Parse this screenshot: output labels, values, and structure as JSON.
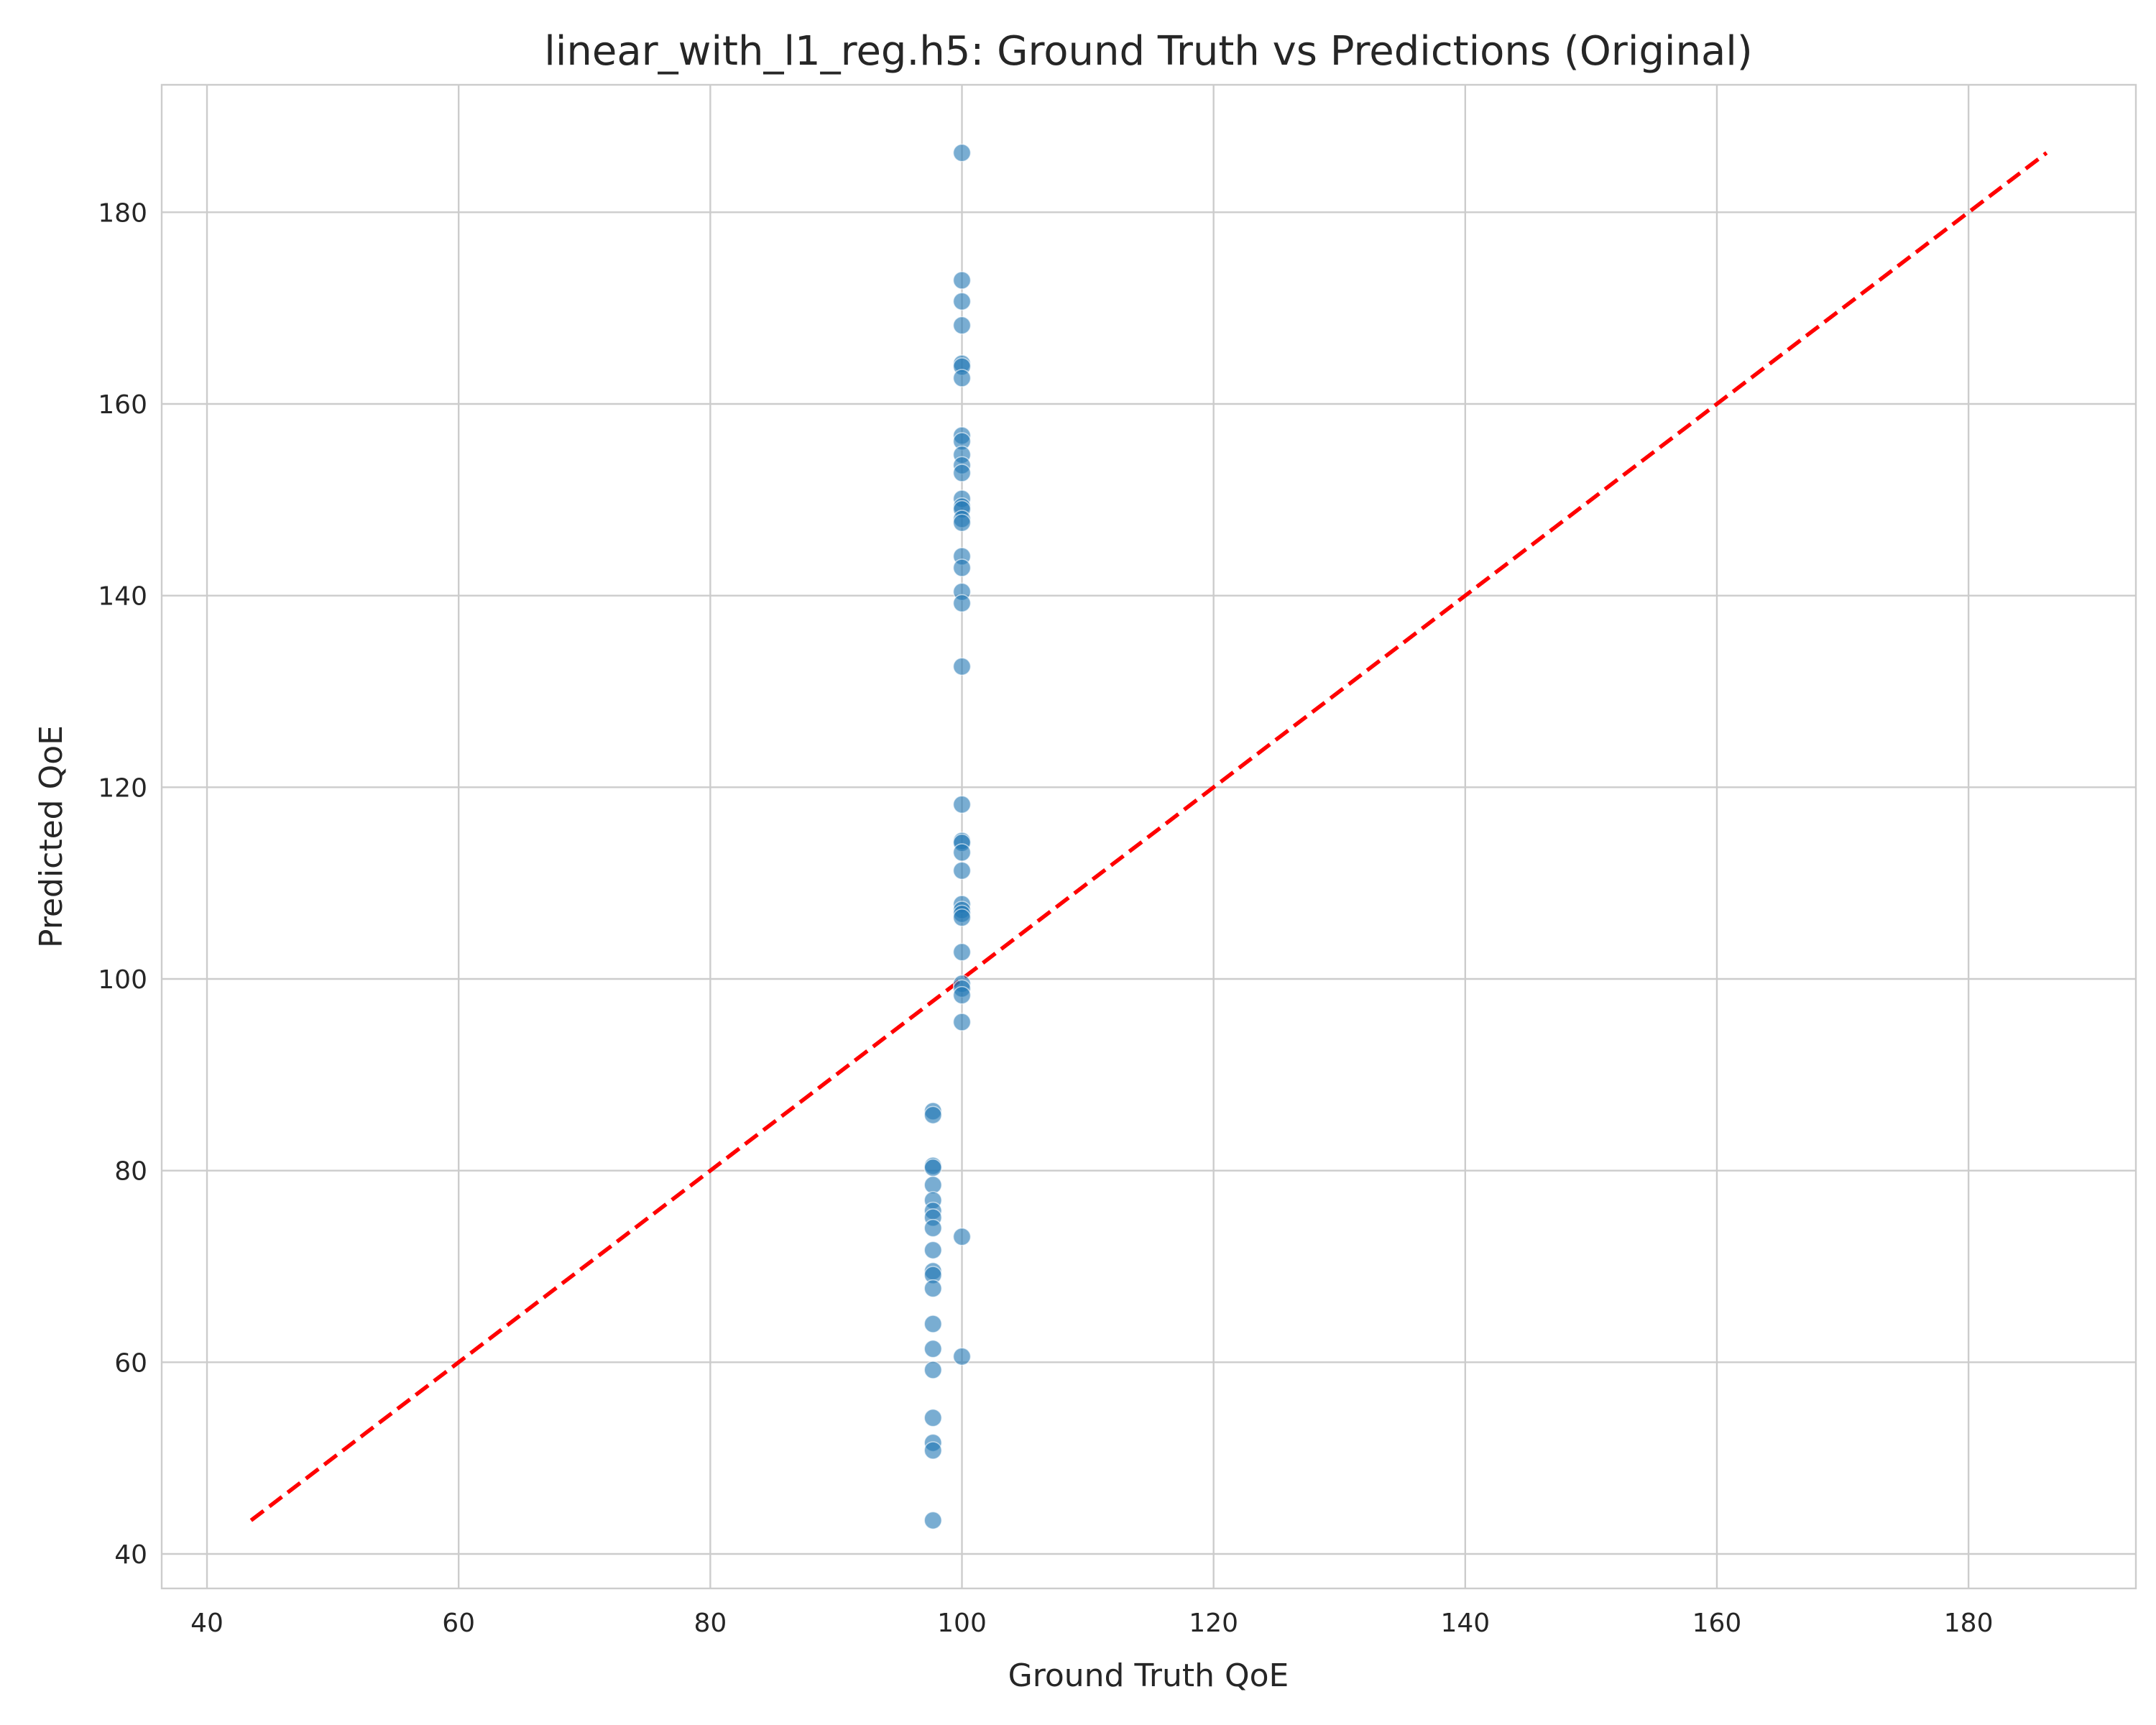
{
  "chart_data": {
    "type": "scatter",
    "title": "linear_with_l1_reg.h5: Ground Truth vs Predictions (Original)",
    "xlabel": "Ground Truth QoE",
    "ylabel": "Predicted QoE",
    "xlim": [
      36.4,
      193.3
    ],
    "ylim": [
      36.4,
      193.3
    ],
    "xticks": [
      40,
      60,
      80,
      100,
      120,
      140,
      160,
      180
    ],
    "yticks": [
      40,
      60,
      80,
      100,
      120,
      140,
      160,
      180
    ],
    "grid": true,
    "reference_line": {
      "from": [
        43.5,
        43.5
      ],
      "to": [
        186.2,
        186.2
      ],
      "color": "#ff0000",
      "style": "dashed"
    },
    "point_color": "#1f77b4",
    "series": [
      {
        "points": [
          [
            100,
            186.2
          ],
          [
            100,
            172.9
          ],
          [
            100,
            170.7
          ],
          [
            100,
            168.2
          ],
          [
            100,
            164.2
          ],
          [
            100,
            163.9
          ],
          [
            100,
            162.7
          ],
          [
            100,
            156.7
          ],
          [
            100,
            156.1
          ],
          [
            100,
            154.7
          ],
          [
            100,
            153.6
          ],
          [
            100,
            152.8
          ],
          [
            100,
            150.1
          ],
          [
            100,
            149.3
          ],
          [
            100,
            149.0
          ],
          [
            100,
            148.0
          ],
          [
            100,
            147.6
          ],
          [
            100,
            144.1
          ],
          [
            100,
            142.9
          ],
          [
            100,
            140.4
          ],
          [
            100,
            139.2
          ],
          [
            100,
            132.6
          ],
          [
            100,
            118.2
          ],
          [
            100,
            114.4
          ],
          [
            100,
            114.2
          ],
          [
            100,
            113.2
          ],
          [
            100,
            111.3
          ],
          [
            100,
            107.8
          ],
          [
            100,
            107.2
          ],
          [
            100,
            106.8
          ],
          [
            100,
            106.4
          ],
          [
            100,
            102.8
          ],
          [
            100,
            99.5
          ],
          [
            100,
            99.0
          ],
          [
            100,
            98.3
          ],
          [
            100,
            95.5
          ],
          [
            100,
            73.1
          ],
          [
            100,
            60.6
          ],
          [
            97.7,
            86.2
          ],
          [
            97.7,
            85.8
          ],
          [
            97.7,
            80.5
          ],
          [
            97.7,
            80.3
          ],
          [
            97.7,
            78.5
          ],
          [
            97.7,
            76.9
          ],
          [
            97.7,
            75.8
          ],
          [
            97.7,
            75.1
          ],
          [
            97.7,
            74.0
          ],
          [
            97.7,
            71.7
          ],
          [
            97.7,
            69.5
          ],
          [
            97.7,
            69.1
          ],
          [
            97.7,
            67.7
          ],
          [
            97.7,
            64.0
          ],
          [
            97.7,
            61.4
          ],
          [
            97.7,
            59.2
          ],
          [
            97.7,
            54.2
          ],
          [
            97.7,
            51.6
          ],
          [
            97.7,
            50.8
          ],
          [
            97.7,
            43.5
          ]
        ]
      }
    ]
  }
}
